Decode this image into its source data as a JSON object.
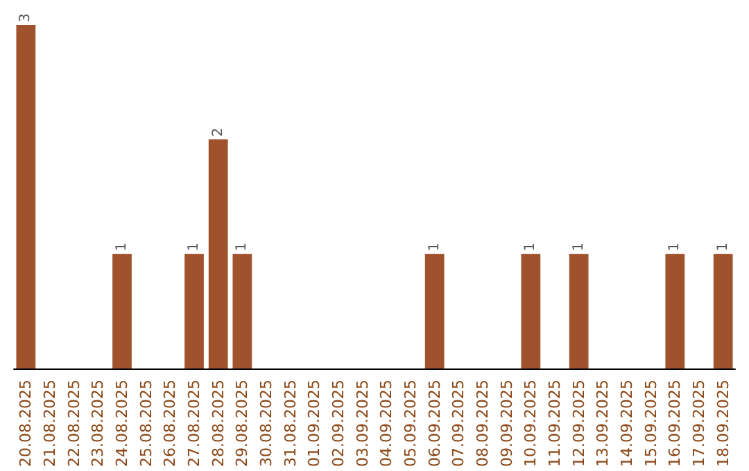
{
  "chart_data": {
    "type": "bar",
    "categories": [
      "20.08.2025",
      "21.08.2025",
      "22.08.2025",
      "23.08.2025",
      "24.08.2025",
      "25.08.2025",
      "26.08.2025",
      "27.08.2025",
      "28.08.2025",
      "29.08.2025",
      "30.08.2025",
      "31.08.2025",
      "01.09.2025",
      "02.09.2025",
      "03.09.2025",
      "04.09.2025",
      "05.09.2025",
      "06.09.2025",
      "07.09.2025",
      "08.09.2025",
      "09.09.2025",
      "10.09.2025",
      "11.09.2025",
      "12.09.2025",
      "13.09.2025",
      "14.09.2025",
      "15.09.2025",
      "16.09.2025",
      "17.09.2025",
      "18.09.2025"
    ],
    "values": [
      3,
      0,
      0,
      0,
      1,
      0,
      0,
      1,
      2,
      1,
      0,
      0,
      0,
      0,
      0,
      0,
      0,
      1,
      0,
      0,
      0,
      1,
      0,
      1,
      0,
      0,
      0,
      1,
      0,
      1
    ],
    "value_labels": [
      "3",
      null,
      null,
      null,
      "1",
      null,
      null,
      "1",
      "2",
      "1",
      null,
      null,
      null,
      null,
      null,
      null,
      null,
      "1",
      null,
      null,
      null,
      "1",
      null,
      "1",
      null,
      null,
      null,
      "1",
      null,
      "1"
    ],
    "color": "#a0522d",
    "grid": false,
    "tick_labels": "x"
  }
}
